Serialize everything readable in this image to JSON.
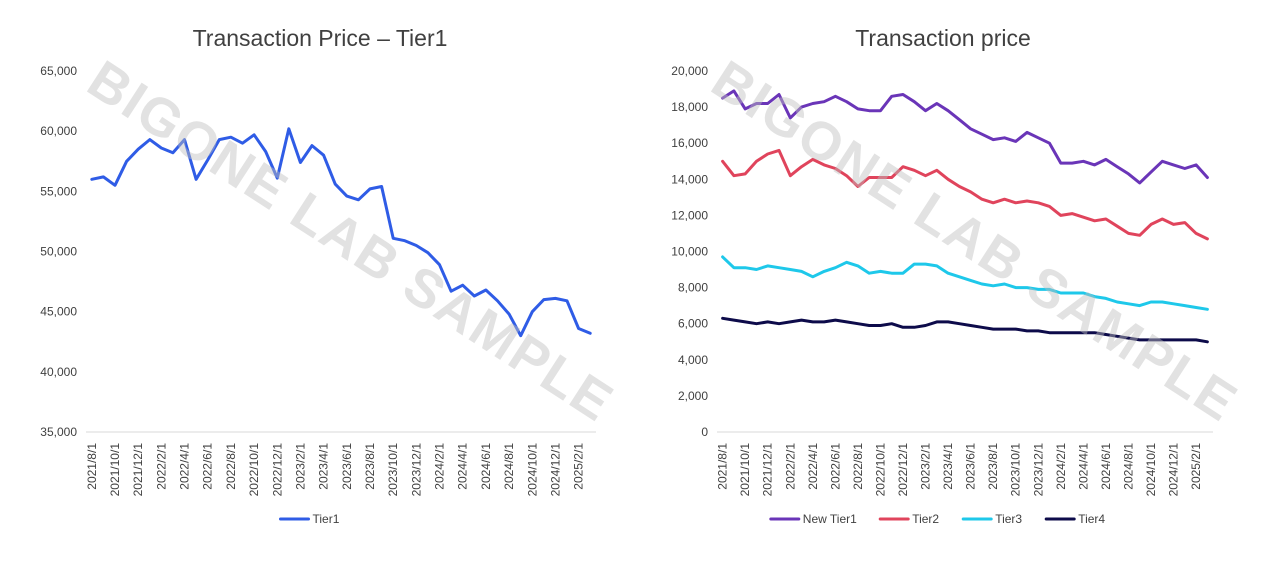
{
  "watermark": "BIGONE LAB SAMPLE",
  "chart_data": [
    {
      "type": "line",
      "title": "Transaction Price – Tier1",
      "xlabel": "",
      "ylabel": "",
      "ylim": [
        35000,
        65000
      ],
      "y_ticks": [
        "35,000",
        "40,000",
        "45,000",
        "50,000",
        "55,000",
        "60,000",
        "65,000"
      ],
      "y_tick_values": [
        35000,
        40000,
        45000,
        50000,
        55000,
        60000,
        65000
      ],
      "x_tick_labels": [
        "2021/8/1",
        "2021/10/1",
        "2021/12/1",
        "2022/2/1",
        "2022/4/1",
        "2022/6/1",
        "2022/8/1",
        "2022/10/1",
        "2022/12/1",
        "2023/2/1",
        "2023/4/1",
        "2023/6/1",
        "2023/8/1",
        "2023/10/1",
        "2023/12/1",
        "2024/2/1",
        "2024/4/1",
        "2024/6/1",
        "2024/8/1",
        "2024/10/1",
        "2024/12/1",
        "2025/2/1"
      ],
      "categories": [
        "2021/8/1",
        "2021/9/1",
        "2021/10/1",
        "2021/11/1",
        "2021/12/1",
        "2022/1/1",
        "2022/2/1",
        "2022/3/1",
        "2022/4/1",
        "2022/5/1",
        "2022/6/1",
        "2022/7/1",
        "2022/8/1",
        "2022/9/1",
        "2022/10/1",
        "2022/11/1",
        "2022/12/1",
        "2023/1/1",
        "2023/2/1",
        "2023/3/1",
        "2023/4/1",
        "2023/5/1",
        "2023/6/1",
        "2023/7/1",
        "2023/8/1",
        "2023/9/1",
        "2023/10/1",
        "2023/11/1",
        "2023/12/1",
        "2024/1/1",
        "2024/2/1",
        "2024/3/1",
        "2024/4/1",
        "2024/5/1",
        "2024/6/1",
        "2024/7/1",
        "2024/8/1",
        "2024/9/1",
        "2024/10/1",
        "2024/11/1",
        "2024/12/1",
        "2025/1/1",
        "2025/2/1",
        "2025/3/1"
      ],
      "series": [
        {
          "name": "Tier1",
          "color": "#2f5ce6",
          "values": [
            56000,
            56200,
            55500,
            57500,
            58500,
            59300,
            58600,
            58200,
            59300,
            56000,
            57600,
            59300,
            59500,
            59000,
            59700,
            58300,
            56100,
            60200,
            57400,
            58800,
            58000,
            55600,
            54600,
            54300,
            55200,
            55400,
            51100,
            50900,
            50500,
            49900,
            48900,
            46700,
            47200,
            46300,
            46800,
            45900,
            44800,
            43000,
            45000,
            46000,
            46100,
            45900,
            43600,
            43200
          ]
        }
      ],
      "legend": "bottom",
      "grid": false
    },
    {
      "type": "line",
      "title": "Transaction price",
      "xlabel": "",
      "ylabel": "",
      "ylim": [
        0,
        20000
      ],
      "y_ticks": [
        "0",
        "2,000",
        "4,000",
        "6,000",
        "8,000",
        "10,000",
        "12,000",
        "14,000",
        "16,000",
        "18,000",
        "20,000"
      ],
      "y_tick_values": [
        0,
        2000,
        4000,
        6000,
        8000,
        10000,
        12000,
        14000,
        16000,
        18000,
        20000
      ],
      "x_tick_labels": [
        "2021/8/1",
        "2021/10/1",
        "2021/12/1",
        "2022/2/1",
        "2022/4/1",
        "2022/6/1",
        "2022/8/1",
        "2022/10/1",
        "2022/12/1",
        "2023/2/1",
        "2023/4/1",
        "2023/6/1",
        "2023/8/1",
        "2023/10/1",
        "2023/12/1",
        "2024/2/1",
        "2024/4/1",
        "2024/6/1",
        "2024/8/1",
        "2024/10/1",
        "2024/12/1",
        "2025/2/1"
      ],
      "categories": [
        "2021/8/1",
        "2021/9/1",
        "2021/10/1",
        "2021/11/1",
        "2021/12/1",
        "2022/1/1",
        "2022/2/1",
        "2022/3/1",
        "2022/4/1",
        "2022/5/1",
        "2022/6/1",
        "2022/7/1",
        "2022/8/1",
        "2022/9/1",
        "2022/10/1",
        "2022/11/1",
        "2022/12/1",
        "2023/1/1",
        "2023/2/1",
        "2023/3/1",
        "2023/4/1",
        "2023/5/1",
        "2023/6/1",
        "2023/7/1",
        "2023/8/1",
        "2023/9/1",
        "2023/10/1",
        "2023/11/1",
        "2023/12/1",
        "2024/1/1",
        "2024/2/1",
        "2024/3/1",
        "2024/4/1",
        "2024/5/1",
        "2024/6/1",
        "2024/7/1",
        "2024/8/1",
        "2024/9/1",
        "2024/10/1",
        "2024/11/1",
        "2024/12/1",
        "2025/1/1",
        "2025/2/1",
        "2025/3/1"
      ],
      "series": [
        {
          "name": "New Tier1",
          "color": "#6a35b8",
          "values": [
            18500,
            18900,
            17900,
            18200,
            18200,
            18700,
            17400,
            18000,
            18200,
            18300,
            18600,
            18300,
            17900,
            17800,
            17800,
            18600,
            18700,
            18300,
            17800,
            18200,
            17800,
            17300,
            16800,
            16500,
            16200,
            16300,
            16100,
            16600,
            16300,
            16000,
            14900,
            14900,
            15000,
            14800,
            15100,
            14700,
            14300,
            13800,
            14400,
            15000,
            14800,
            14600,
            14800,
            14100
          ]
        },
        {
          "name": "Tier2",
          "color": "#e0445c",
          "values": [
            15000,
            14200,
            14300,
            15000,
            15400,
            15600,
            14200,
            14700,
            15100,
            14800,
            14600,
            14200,
            13600,
            14100,
            14100,
            14100,
            14700,
            14500,
            14200,
            14500,
            14000,
            13600,
            13300,
            12900,
            12700,
            12900,
            12700,
            12800,
            12700,
            12500,
            12000,
            12100,
            11900,
            11700,
            11800,
            11400,
            11000,
            10900,
            11500,
            11800,
            11500,
            11600,
            11000,
            10700
          ]
        },
        {
          "name": "Tier3",
          "color": "#1ec8ea",
          "values": [
            9700,
            9100,
            9100,
            9000,
            9200,
            9100,
            9000,
            8900,
            8600,
            8900,
            9100,
            9400,
            9200,
            8800,
            8900,
            8800,
            8800,
            9300,
            9300,
            9200,
            8800,
            8600,
            8400,
            8200,
            8100,
            8200,
            8000,
            8000,
            7900,
            7900,
            7700,
            7700,
            7700,
            7500,
            7400,
            7200,
            7100,
            7000,
            7200,
            7200,
            7100,
            7000,
            6900,
            6800
          ]
        },
        {
          "name": "Tier4",
          "color": "#0d0b4a",
          "values": [
            6300,
            6200,
            6100,
            6000,
            6100,
            6000,
            6100,
            6200,
            6100,
            6100,
            6200,
            6100,
            6000,
            5900,
            5900,
            6000,
            5800,
            5800,
            5900,
            6100,
            6100,
            6000,
            5900,
            5800,
            5700,
            5700,
            5700,
            5600,
            5600,
            5500,
            5500,
            5500,
            5500,
            5500,
            5400,
            5300,
            5200,
            5100,
            5100,
            5100,
            5100,
            5100,
            5100,
            5000
          ]
        }
      ],
      "legend": "bottom",
      "grid": false
    }
  ]
}
